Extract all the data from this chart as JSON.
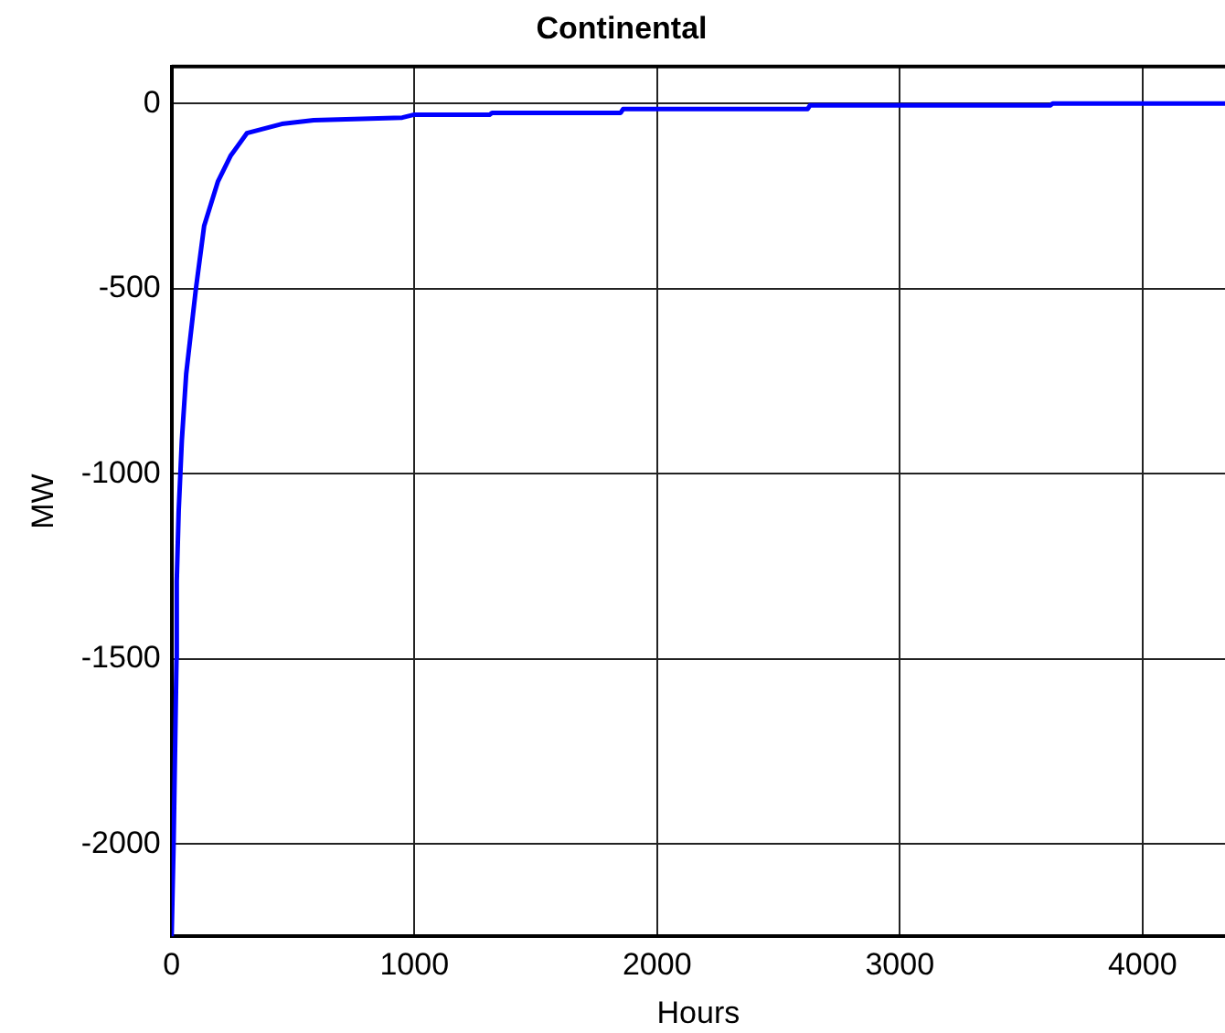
{
  "chart_data": {
    "type": "line",
    "title": "Continental",
    "xlabel": "Hours",
    "ylabel": "MW",
    "series": [
      {
        "color": "#0000ff",
        "x": [
          0,
          8,
          20,
          21,
          29,
          42,
          60,
          100,
          134,
          191,
          244,
          310,
          454,
          585,
          950,
          1000,
          1310,
          1320,
          1850,
          1860,
          2620,
          2630,
          3620,
          3630,
          4340
        ],
        "values": [
          -2250,
          -2000,
          -1500,
          -1290,
          -1100,
          -910,
          -730,
          -500,
          -330,
          -210,
          -140,
          -80,
          -55,
          -45,
          -38,
          -30,
          -30,
          -25,
          -25,
          -15,
          -15,
          -5,
          -5,
          0,
          0
        ]
      }
    ],
    "xlim": [
      0,
      4340
    ],
    "xticks": [
      0,
      1000,
      2000,
      3000,
      4000
    ],
    "ylim": [
      -2250,
      100
    ],
    "yticks": [
      -2000,
      -1500,
      -1000,
      -500,
      0
    ],
    "grid": true,
    "legend": false,
    "marker": "none",
    "line_style": "solid"
  }
}
